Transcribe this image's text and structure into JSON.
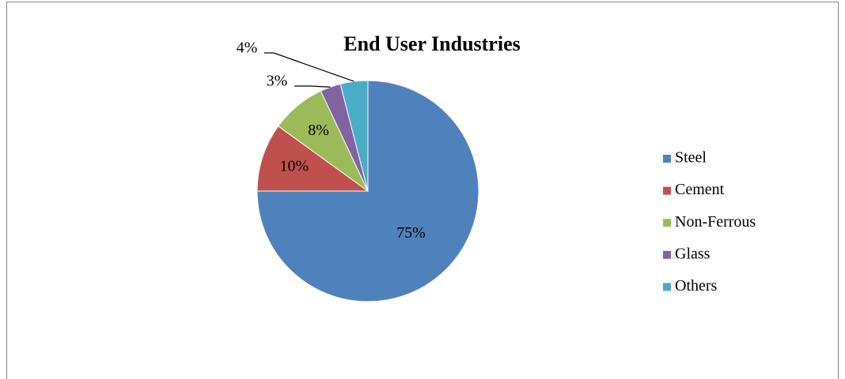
{
  "chart_data": {
    "type": "pie",
    "title": "End User Industries",
    "categories": [
      "Steel",
      "Cement",
      "Non-Ferrous",
      "Glass",
      "Others"
    ],
    "values": [
      75,
      10,
      8,
      3,
      4
    ],
    "value_labels": [
      "75%",
      "10%",
      "8%",
      "3%",
      "4%"
    ],
    "colors": [
      "#4f81bd",
      "#c0504d",
      "#9bbb59",
      "#8064a2",
      "#4bacc6"
    ],
    "legend": "right"
  }
}
